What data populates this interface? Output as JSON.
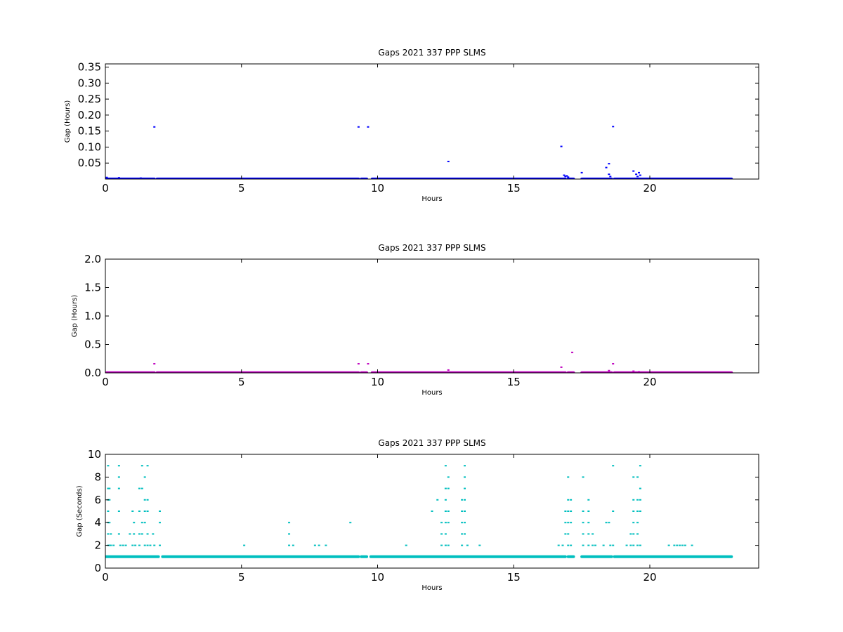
{
  "chart_data": [
    {
      "type": "scatter",
      "title": "Gaps 2021 337 PPP  SLMS",
      "xlabel": "Hours",
      "ylabel": "Gap (Hours)",
      "xlim": [
        0,
        24
      ],
      "ylim": [
        0,
        0.36
      ],
      "xticks": [
        0,
        5,
        10,
        15,
        20
      ],
      "yticks": [
        0.05,
        0.1,
        0.15,
        0.2,
        0.25,
        0.3,
        0.35
      ],
      "ytick_labels": [
        "0.05",
        "0.10",
        "0.15",
        "0.20",
        "0.25",
        "0.30",
        "0.35"
      ],
      "grid": false,
      "color": "#0000ff",
      "series": [
        {
          "baseline": {
            "y": 0.0003,
            "segments": [
              [
                0.0,
                1.8
              ],
              [
                1.9,
                9.3
              ],
              [
                9.4,
                9.6
              ],
              [
                9.8,
                16.9
              ],
              [
                17.0,
                17.2
              ],
              [
                17.5,
                18.6
              ],
              [
                18.7,
                23.0
              ]
            ]
          },
          "points": [
            [
              0.05,
              0.005
            ],
            [
              0.5,
              0.004
            ],
            [
              1.3,
              0.003
            ],
            [
              1.8,
              0.163
            ],
            [
              9.3,
              0.163
            ],
            [
              9.65,
              0.163
            ],
            [
              12.6,
              0.055
            ],
            [
              16.75,
              0.102
            ],
            [
              16.85,
              0.012
            ],
            [
              16.9,
              0.008
            ],
            [
              16.95,
              0.01
            ],
            [
              17.0,
              0.006
            ],
            [
              17.5,
              0.02
            ],
            [
              18.4,
              0.036
            ],
            [
              18.5,
              0.048
            ],
            [
              18.5,
              0.015
            ],
            [
              18.55,
              0.008
            ],
            [
              18.65,
              0.164
            ],
            [
              19.4,
              0.025
            ],
            [
              19.5,
              0.015
            ],
            [
              19.55,
              0.008
            ],
            [
              19.6,
              0.02
            ],
            [
              19.65,
              0.012
            ]
          ]
        }
      ]
    },
    {
      "type": "scatter",
      "title": "Gaps 2021 337 PPP  SLMS",
      "xlabel": "Hours",
      "ylabel": "Gap (Hours)",
      "xlim": [
        0,
        24
      ],
      "ylim": [
        0,
        2.0
      ],
      "xticks": [
        0,
        5,
        10,
        15,
        20
      ],
      "yticks": [
        0.0,
        0.5,
        1.0,
        1.5,
        2.0
      ],
      "ytick_labels": [
        "0.0",
        "0.5",
        "1.0",
        "1.5",
        "2.0"
      ],
      "grid": false,
      "color": "#bf00bf",
      "series": [
        {
          "baseline": {
            "y": 0.003,
            "segments": [
              [
                0.0,
                1.8
              ],
              [
                1.9,
                9.3
              ],
              [
                9.4,
                9.6
              ],
              [
                9.8,
                16.9
              ],
              [
                17.0,
                17.2
              ],
              [
                17.5,
                18.6
              ],
              [
                18.7,
                23.0
              ]
            ]
          },
          "points": [
            [
              1.8,
              0.16
            ],
            [
              9.3,
              0.16
            ],
            [
              9.65,
              0.16
            ],
            [
              12.6,
              0.05
            ],
            [
              16.75,
              0.1
            ],
            [
              17.15,
              0.36
            ],
            [
              18.5,
              0.04
            ],
            [
              18.65,
              0.16
            ],
            [
              19.4,
              0.03
            ],
            [
              19.6,
              0.02
            ]
          ]
        }
      ]
    },
    {
      "type": "scatter",
      "title": "Gaps 2021 337 PPP  SLMS",
      "xlabel": "Hours",
      "ylabel": "Gap (Seconds)",
      "xlim": [
        0,
        24
      ],
      "ylim": [
        0,
        10
      ],
      "xticks": [
        0,
        5,
        10,
        15,
        20
      ],
      "yticks": [
        0,
        2,
        4,
        6,
        8,
        10
      ],
      "ytick_labels": [
        "0",
        "2",
        "4",
        "6",
        "8",
        "10"
      ],
      "grid": false,
      "color": "#00bfbf",
      "series": [
        {
          "baseline": {
            "y": 1,
            "segments": [
              [
                0.0,
                1.95
              ],
              [
                2.1,
                9.3
              ],
              [
                9.4,
                9.6
              ],
              [
                9.75,
                16.9
              ],
              [
                17.0,
                17.2
              ],
              [
                17.5,
                18.6
              ],
              [
                18.7,
                23.0
              ]
            ]
          },
          "points": [
            [
              0.1,
              9
            ],
            [
              0.1,
              7
            ],
            [
              0.1,
              6
            ],
            [
              0.1,
              5
            ],
            [
              0.1,
              4
            ],
            [
              0.1,
              3
            ],
            [
              0.1,
              2
            ],
            [
              0.15,
              7
            ],
            [
              0.15,
              6
            ],
            [
              0.15,
              4
            ],
            [
              0.15,
              2
            ],
            [
              0.2,
              3
            ],
            [
              0.2,
              2
            ],
            [
              0.3,
              2
            ],
            [
              0.5,
              9
            ],
            [
              0.5,
              8
            ],
            [
              0.5,
              7
            ],
            [
              0.5,
              5
            ],
            [
              0.5,
              3
            ],
            [
              0.55,
              2
            ],
            [
              0.65,
              2
            ],
            [
              0.75,
              2
            ],
            [
              0.9,
              3
            ],
            [
              1.0,
              5
            ],
            [
              1.0,
              2
            ],
            [
              1.05,
              4
            ],
            [
              1.05,
              3
            ],
            [
              1.1,
              2
            ],
            [
              1.25,
              7
            ],
            [
              1.25,
              5
            ],
            [
              1.25,
              3
            ],
            [
              1.25,
              2
            ],
            [
              1.35,
              9
            ],
            [
              1.35,
              7
            ],
            [
              1.35,
              4
            ],
            [
              1.35,
              3
            ],
            [
              1.45,
              8
            ],
            [
              1.45,
              6
            ],
            [
              1.45,
              5
            ],
            [
              1.45,
              4
            ],
            [
              1.45,
              2
            ],
            [
              1.55,
              9
            ],
            [
              1.55,
              6
            ],
            [
              1.55,
              5
            ],
            [
              1.55,
              3
            ],
            [
              1.55,
              2
            ],
            [
              1.65,
              2
            ],
            [
              1.75,
              3
            ],
            [
              1.8,
              2
            ],
            [
              2.0,
              5
            ],
            [
              2.0,
              4
            ],
            [
              2.0,
              2
            ],
            [
              5.1,
              2
            ],
            [
              6.75,
              4
            ],
            [
              6.75,
              3
            ],
            [
              6.75,
              2
            ],
            [
              6.9,
              2
            ],
            [
              7.7,
              2
            ],
            [
              7.85,
              2
            ],
            [
              8.1,
              2
            ],
            [
              9.0,
              4
            ],
            [
              11.05,
              2
            ],
            [
              12.0,
              5
            ],
            [
              12.2,
              6
            ],
            [
              12.35,
              4
            ],
            [
              12.35,
              3
            ],
            [
              12.35,
              2
            ],
            [
              12.5,
              9
            ],
            [
              12.5,
              7
            ],
            [
              12.5,
              6
            ],
            [
              12.5,
              5
            ],
            [
              12.5,
              4
            ],
            [
              12.5,
              3
            ],
            [
              12.5,
              2
            ],
            [
              12.6,
              8
            ],
            [
              12.6,
              7
            ],
            [
              12.6,
              5
            ],
            [
              12.6,
              4
            ],
            [
              12.6,
              2
            ],
            [
              13.1,
              6
            ],
            [
              13.1,
              5
            ],
            [
              13.1,
              4
            ],
            [
              13.1,
              3
            ],
            [
              13.1,
              2
            ],
            [
              13.2,
              9
            ],
            [
              13.2,
              8
            ],
            [
              13.2,
              7
            ],
            [
              13.2,
              6
            ],
            [
              13.2,
              5
            ],
            [
              13.2,
              4
            ],
            [
              13.2,
              3
            ],
            [
              13.3,
              2
            ],
            [
              13.75,
              2
            ],
            [
              16.65,
              2
            ],
            [
              16.8,
              2
            ],
            [
              16.9,
              5
            ],
            [
              16.9,
              4
            ],
            [
              16.9,
              3
            ],
            [
              17.0,
              8
            ],
            [
              17.0,
              6
            ],
            [
              17.0,
              5
            ],
            [
              17.0,
              4
            ],
            [
              17.0,
              3
            ],
            [
              17.0,
              2
            ],
            [
              17.1,
              6
            ],
            [
              17.1,
              5
            ],
            [
              17.1,
              4
            ],
            [
              17.1,
              2
            ],
            [
              17.55,
              8
            ],
            [
              17.55,
              5
            ],
            [
              17.55,
              4
            ],
            [
              17.55,
              3
            ],
            [
              17.55,
              2
            ],
            [
              17.75,
              6
            ],
            [
              17.75,
              5
            ],
            [
              17.75,
              4
            ],
            [
              17.75,
              3
            ],
            [
              17.75,
              2
            ],
            [
              17.9,
              3
            ],
            [
              17.9,
              2
            ],
            [
              18.0,
              2
            ],
            [
              18.3,
              2
            ],
            [
              18.4,
              4
            ],
            [
              18.5,
              4
            ],
            [
              18.55,
              2
            ],
            [
              18.65,
              9
            ],
            [
              18.65,
              5
            ],
            [
              18.65,
              2
            ],
            [
              19.15,
              2
            ],
            [
              19.3,
              3
            ],
            [
              19.3,
              2
            ],
            [
              19.4,
              8
            ],
            [
              19.4,
              6
            ],
            [
              19.4,
              5
            ],
            [
              19.4,
              4
            ],
            [
              19.4,
              3
            ],
            [
              19.4,
              2
            ],
            [
              19.55,
              8
            ],
            [
              19.55,
              6
            ],
            [
              19.55,
              5
            ],
            [
              19.55,
              4
            ],
            [
              19.55,
              3
            ],
            [
              19.55,
              2
            ],
            [
              19.65,
              9
            ],
            [
              19.65,
              7
            ],
            [
              19.65,
              6
            ],
            [
              19.65,
              5
            ],
            [
              19.65,
              2
            ],
            [
              20.7,
              2
            ],
            [
              20.9,
              2
            ],
            [
              21.0,
              2
            ],
            [
              21.1,
              2
            ],
            [
              21.2,
              2
            ],
            [
              21.3,
              2
            ],
            [
              21.55,
              2
            ]
          ]
        }
      ]
    }
  ]
}
